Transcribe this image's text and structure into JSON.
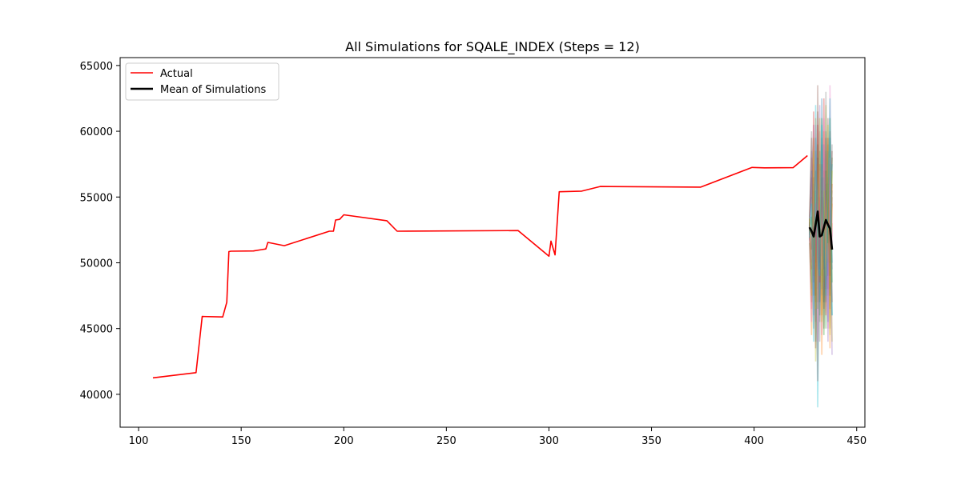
{
  "chart_data": {
    "type": "line",
    "title": "All Simulations for SQALE_INDEX (Steps = 12)",
    "xlabel": "",
    "ylabel": "",
    "xlim": [
      91,
      454
    ],
    "ylim": [
      37500,
      65600
    ],
    "xticks": [
      100,
      150,
      200,
      250,
      300,
      350,
      400,
      450
    ],
    "yticks": [
      40000,
      45000,
      50000,
      55000,
      60000,
      65000
    ],
    "legend_position": "upper-left",
    "legend": [
      "Actual",
      "Mean of Simulations"
    ],
    "series": [
      {
        "name": "Actual",
        "color": "#ff0000",
        "x": [
          107,
          128,
          131,
          141,
          143,
          144,
          145,
          156,
          160,
          162,
          163,
          171,
          193,
          195,
          196,
          198,
          200,
          221,
          226,
          285,
          300,
          301,
          303,
          305,
          316,
          325,
          374,
          399,
          405,
          419,
          426
        ],
        "y": [
          41250,
          41650,
          45920,
          45880,
          47000,
          50850,
          50880,
          50900,
          51000,
          51050,
          51550,
          51300,
          52400,
          52400,
          53250,
          53300,
          53650,
          53200,
          52400,
          52450,
          50500,
          51650,
          50600,
          55400,
          55450,
          55800,
          55750,
          57250,
          57220,
          57230,
          58150
        ]
      },
      {
        "name": "Mean of Simulations",
        "color": "#000000",
        "x": [
          427,
          428,
          429,
          430,
          431,
          432,
          433,
          434,
          435,
          436,
          437,
          438
        ],
        "y": [
          52700,
          52400,
          52000,
          52900,
          53900,
          52000,
          52100,
          52700,
          53250,
          52900,
          52600,
          51000
        ]
      }
    ],
    "simulations": {
      "x": [
        427,
        428,
        429,
        430,
        431,
        432,
        433,
        434,
        435,
        436,
        437,
        438
      ],
      "colors": [
        "#1f77b4",
        "#ff7f0e",
        "#2ca02c",
        "#d62728",
        "#9467bd",
        "#8c564b",
        "#e377c2",
        "#7f7f7f",
        "#bcbd22",
        "#17becf"
      ],
      "paths": [
        [
          52000,
          48000,
          56000,
          44000,
          58000,
          50000,
          55000,
          47000,
          60000,
          49000,
          54000,
          46000
        ],
        [
          53500,
          58000,
          49000,
          61000,
          47000,
          55000,
          43000,
          57000,
          51000,
          59000,
          48000,
          53000
        ],
        [
          51500,
          47000,
          54000,
          50000,
          59000,
          46000,
          61000,
          52000,
          45000,
          56000,
          50000,
          58000
        ],
        [
          52800,
          56500,
          48500,
          53500,
          41000,
          57500,
          49000,
          62500,
          48000,
          52000,
          60000,
          47000
        ],
        [
          53000,
          50000,
          60500,
          45500,
          55000,
          51000,
          47500,
          54000,
          58500,
          44000,
          55500,
          49500
        ],
        [
          52300,
          59500,
          51000,
          47000,
          63500,
          49500,
          56500,
          45000,
          53000,
          61000,
          46500,
          55000
        ],
        [
          52500,
          46500,
          57500,
          52500,
          48000,
          60000,
          44500,
          58000,
          50500,
          47500,
          63500,
          51500
        ],
        [
          53200,
          55000,
          45000,
          58500,
          52500,
          44000,
          59000,
          50000,
          56000,
          53500,
          45000,
          59000
        ],
        [
          51800,
          52500,
          59500,
          42500,
          54500,
          56000,
          51000,
          48500,
          62000,
          50000,
          57500,
          44000
        ],
        [
          52600,
          48500,
          52000,
          55500,
          39000,
          53500,
          48000,
          56500,
          47000,
          58500,
          52500,
          57500
        ],
        [
          52100,
          57000,
          47500,
          59500,
          51000,
          47000,
          62500,
          49500,
          55500,
          45500,
          59500,
          50000
        ],
        [
          53300,
          44500,
          55500,
          49000,
          57500,
          54000,
          46000,
          60000,
          52500,
          56500,
          43500,
          54500
        ],
        [
          52400,
          53500,
          50500,
          57000,
          46500,
          58500,
          53000,
          44500,
          57000,
          51500,
          61000,
          48500
        ],
        [
          52900,
          49500,
          61500,
          47500,
          60500,
          48500,
          57500,
          53000,
          46000,
          59500,
          49000,
          56000
        ],
        [
          51700,
          58500,
          46000,
          54500,
          49500,
          62000,
          50500,
          59000,
          54000,
          48000,
          56500,
          43000
        ],
        [
          53100,
          51000,
          56500,
          43500,
          61500,
          52500,
          55500,
          46500,
          59500,
          54500,
          47500,
          58500
        ],
        [
          52200,
          45500,
          53500,
          60500,
          44000,
          57000,
          49500,
          61000,
          50000,
          45000,
          58000,
          52000
        ],
        [
          52700,
          60000,
          49500,
          51500,
          56000,
          45500,
          59500,
          48000,
          63000,
          52500,
          50500,
          55500
        ],
        [
          53400,
          47500,
          58500,
          46500,
          52000,
          61000,
          45500,
          55500,
          49000,
          60500,
          44500,
          57000
        ],
        [
          51900,
          54500,
          44000,
          62000,
          50500,
          49000,
          60500,
          51500,
          47500,
          55000,
          62500,
          46000
        ]
      ]
    }
  }
}
